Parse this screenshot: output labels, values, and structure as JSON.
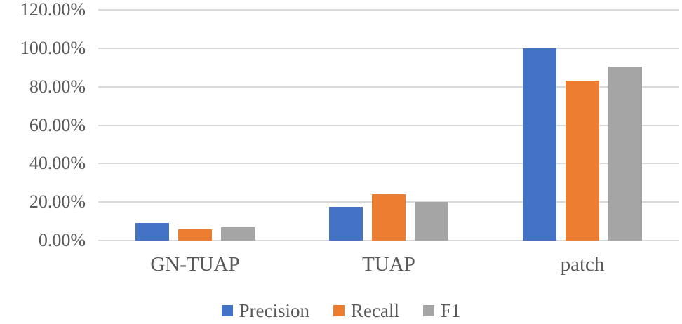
{
  "chart_data": {
    "type": "bar",
    "categories": [
      "GN-TUAP",
      "TUAP",
      "patch"
    ],
    "series": [
      {
        "name": "Precision",
        "color": "#4472C4",
        "values": [
          9,
          17.5,
          100
        ]
      },
      {
        "name": "Recall",
        "color": "#ED7D31",
        "values": [
          6,
          24,
          83
        ]
      },
      {
        "name": "F1",
        "color": "#A5A5A5",
        "values": [
          7,
          20,
          90.5
        ]
      }
    ],
    "title": "",
    "xlabel": "",
    "ylabel": "",
    "ylim": [
      0,
      120
    ],
    "y_ticks": [
      "0.00%",
      "20.00%",
      "40.00%",
      "60.00%",
      "80.00%",
      "100.00%",
      "120.00%"
    ],
    "y_tick_values": [
      0,
      20,
      40,
      60,
      80,
      100,
      120
    ],
    "grid": true,
    "legend_position": "bottom"
  },
  "colors": {
    "background": "#FFFFFF",
    "gridline": "#D9D9D9",
    "axis_line": "#D9D9D9",
    "text": "#595959"
  }
}
